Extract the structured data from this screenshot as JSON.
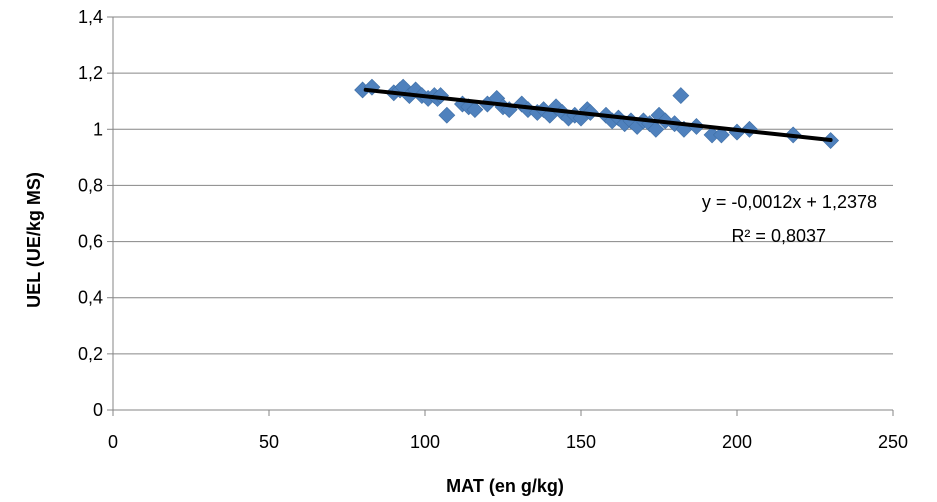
{
  "chart_data": {
    "type": "scatter",
    "xlabel": "MAT (en g/kg)",
    "ylabel": "UEL (UE/kg MS)",
    "xlim": [
      0,
      250
    ],
    "ylim": [
      0,
      1.4
    ],
    "x_ticks": [
      "0",
      "50",
      "100",
      "150",
      "200",
      "250"
    ],
    "y_ticks": [
      "0",
      "0,2",
      "0,4",
      "0,6",
      "0,8",
      "1",
      "1,2",
      "1,4"
    ],
    "grid": "horizontal",
    "marker_color": "#4F81BD",
    "trendline_color": "#000000",
    "trendline": {
      "slope": -0.0012,
      "intercept": 1.2378,
      "x_range": [
        81,
        230
      ],
      "equation": "y = -0,0012x + 1,2378",
      "r2": "R² = 0,8037"
    },
    "points": [
      [
        80,
        1.14
      ],
      [
        83,
        1.15
      ],
      [
        90,
        1.13
      ],
      [
        92,
        1.14
      ],
      [
        93,
        1.15
      ],
      [
        95,
        1.12
      ],
      [
        97,
        1.14
      ],
      [
        99,
        1.12
      ],
      [
        101,
        1.11
      ],
      [
        103,
        1.12
      ],
      [
        104,
        1.11
      ],
      [
        105,
        1.12
      ],
      [
        107,
        1.05
      ],
      [
        112,
        1.09
      ],
      [
        114,
        1.08
      ],
      [
        116,
        1.07
      ],
      [
        120,
        1.09
      ],
      [
        123,
        1.11
      ],
      [
        125,
        1.08
      ],
      [
        127,
        1.07
      ],
      [
        131,
        1.09
      ],
      [
        133,
        1.07
      ],
      [
        136,
        1.06
      ],
      [
        138,
        1.07
      ],
      [
        140,
        1.05
      ],
      [
        142,
        1.08
      ],
      [
        144,
        1.06
      ],
      [
        146,
        1.04
      ],
      [
        148,
        1.05
      ],
      [
        150,
        1.04
      ],
      [
        152,
        1.07
      ],
      [
        153,
        1.06
      ],
      [
        158,
        1.05
      ],
      [
        160,
        1.03
      ],
      [
        162,
        1.04
      ],
      [
        164,
        1.02
      ],
      [
        166,
        1.03
      ],
      [
        168,
        1.01
      ],
      [
        170,
        1.03
      ],
      [
        172,
        1.02
      ],
      [
        174,
        1.0
      ],
      [
        175,
        1.05
      ],
      [
        177,
        1.03
      ],
      [
        180,
        1.02
      ],
      [
        182,
        1.12
      ],
      [
        183,
        1.0
      ],
      [
        187,
        1.01
      ],
      [
        192,
        0.98
      ],
      [
        195,
        0.98
      ],
      [
        200,
        0.99
      ],
      [
        204,
        1.0
      ],
      [
        218,
        0.98
      ],
      [
        230,
        0.96
      ]
    ]
  }
}
